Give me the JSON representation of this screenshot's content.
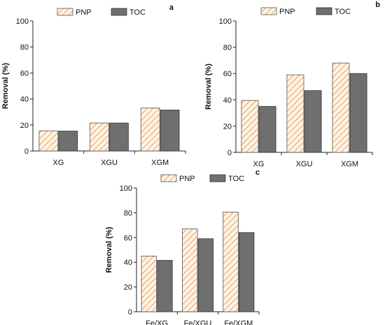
{
  "legend": [
    {
      "name": "PNP",
      "fill": "hatch",
      "hatch_color": "#e8a15a",
      "face": "#fdf3e6"
    },
    {
      "name": "TOC",
      "fill": "solid",
      "color": "#6f6f6f"
    }
  ],
  "chart_data": [
    {
      "type": "bar",
      "panel_label": "a",
      "categories": [
        "XG",
        "XGU",
        "XGM"
      ],
      "ylabel": "Removal (%)",
      "xlabel": "",
      "ylim": [
        0,
        100
      ],
      "yticks": [
        0,
        20,
        40,
        60,
        80,
        100
      ],
      "grid": false,
      "legend_position": "top",
      "series": [
        {
          "name": "PNP",
          "values": [
            15.5,
            21.5,
            33
          ]
        },
        {
          "name": "TOC",
          "values": [
            15.3,
            21.5,
            31.5
          ]
        }
      ]
    },
    {
      "type": "bar",
      "panel_label": "b",
      "categories": [
        "XG",
        "XGU",
        "XGM"
      ],
      "ylabel": "Removal (%)",
      "xlabel": "",
      "ylim": [
        0,
        100
      ],
      "yticks": [
        0,
        20,
        40,
        60,
        80,
        100
      ],
      "grid": false,
      "legend_position": "top",
      "series": [
        {
          "name": "PNP",
          "values": [
            39.5,
            59,
            68
          ]
        },
        {
          "name": "TOC",
          "values": [
            35,
            47,
            60
          ]
        }
      ]
    },
    {
      "type": "bar",
      "panel_label": "c",
      "categories": [
        "Fe/XG",
        "Fe/XGU",
        "Fe/XGM"
      ],
      "ylabel": "Removal (%)",
      "xlabel": "",
      "ylim": [
        0,
        100
      ],
      "yticks": [
        0,
        20,
        40,
        60,
        80,
        100
      ],
      "grid": false,
      "legend_position": "top",
      "series": [
        {
          "name": "PNP",
          "values": [
            45,
            67,
            80.5
          ]
        },
        {
          "name": "TOC",
          "values": [
            41.5,
            59,
            64
          ]
        }
      ]
    }
  ]
}
